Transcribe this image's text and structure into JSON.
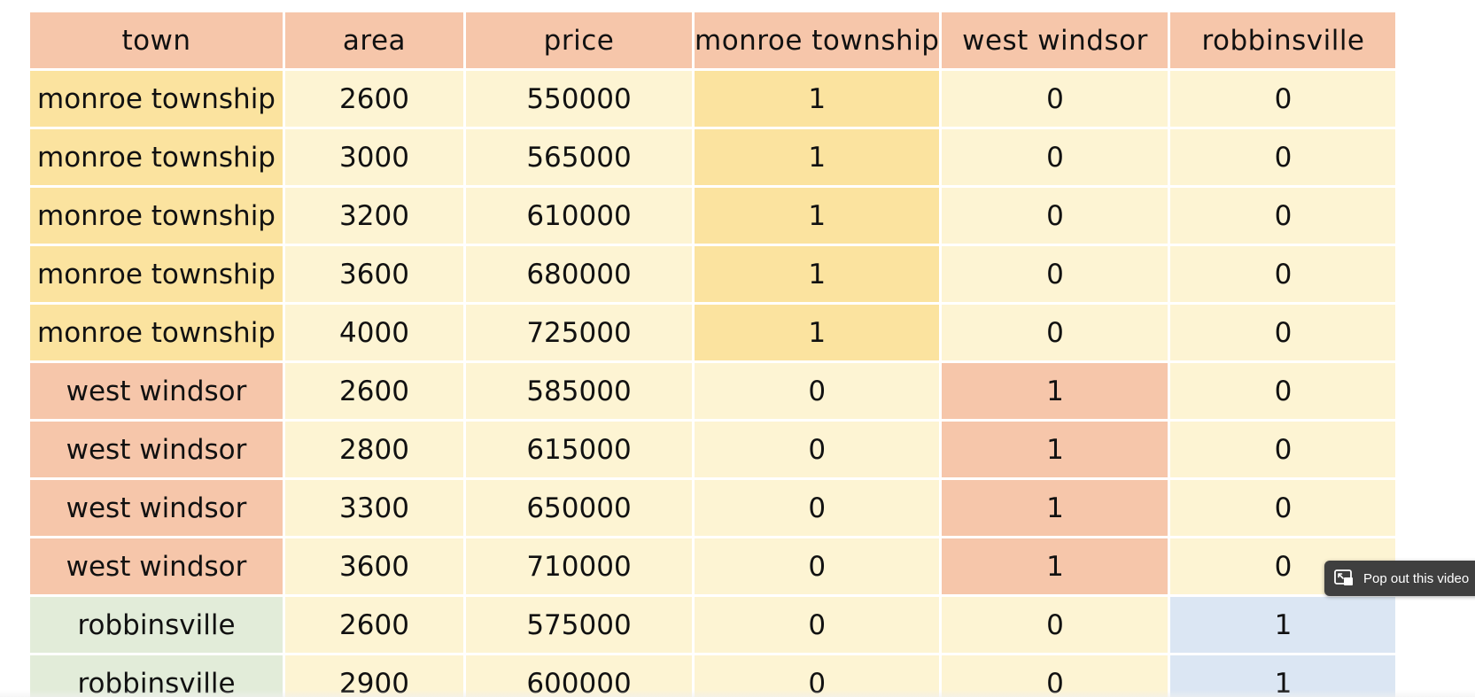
{
  "table": {
    "columns": [
      "town",
      "area",
      "price",
      "monroe township",
      "west windsor",
      "robbinsville"
    ],
    "rows": [
      {
        "town": "monroe township",
        "area": "2600",
        "price": "550000",
        "monroe_township": "1",
        "west_windsor": "0",
        "robbinsville": "0"
      },
      {
        "town": "monroe township",
        "area": "3000",
        "price": "565000",
        "monroe_township": "1",
        "west_windsor": "0",
        "robbinsville": "0"
      },
      {
        "town": "monroe township",
        "area": "3200",
        "price": "610000",
        "monroe_township": "1",
        "west_windsor": "0",
        "robbinsville": "0"
      },
      {
        "town": "monroe township",
        "area": "3600",
        "price": "680000",
        "monroe_township": "1",
        "west_windsor": "0",
        "robbinsville": "0"
      },
      {
        "town": "monroe township",
        "area": "4000",
        "price": "725000",
        "monroe_township": "1",
        "west_windsor": "0",
        "robbinsville": "0"
      },
      {
        "town": "west windsor",
        "area": "2600",
        "price": "585000",
        "monroe_township": "0",
        "west_windsor": "1",
        "robbinsville": "0"
      },
      {
        "town": "west windsor",
        "area": "2800",
        "price": "615000",
        "monroe_township": "0",
        "west_windsor": "1",
        "robbinsville": "0"
      },
      {
        "town": "west windsor",
        "area": "3300",
        "price": "650000",
        "monroe_township": "0",
        "west_windsor": "1",
        "robbinsville": "0"
      },
      {
        "town": "west windsor",
        "area": "3600",
        "price": "710000",
        "monroe_township": "0",
        "west_windsor": "1",
        "robbinsville": "0"
      },
      {
        "town": "robbinsville",
        "area": "2600",
        "price": "575000",
        "monroe_township": "0",
        "west_windsor": "0",
        "robbinsville": "1"
      },
      {
        "town": "robbinsville",
        "area": "2900",
        "price": "600000",
        "monroe_township": "0",
        "west_windsor": "0",
        "robbinsville": "1"
      }
    ]
  },
  "popout": {
    "label": "Pop out this video",
    "icon": "popout-icon"
  },
  "colors": {
    "header": "#f6c6aa",
    "monroe_township": "#fbe39f",
    "west_windsor": "#f6c6aa",
    "robbinsville_town": "#e2ecd9",
    "robbinsville_flag": "#dbe6f3",
    "plain_cell": "#fdf4d3",
    "popout_bg": "#3f3f3f"
  }
}
